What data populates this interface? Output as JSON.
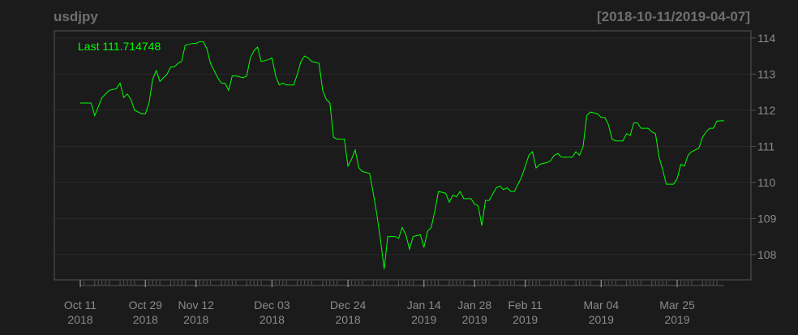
{
  "chart_data": {
    "type": "line",
    "title": "usdjpy",
    "date_range": "[2018-10-11/2019-04-07]",
    "last_label": "Last 111.714748",
    "colors": {
      "background": "#1b1b1b",
      "line": "#00ff00",
      "text": "#8a8a8a",
      "title": "#6f6f6f",
      "grid": "#2a2a2a",
      "frame": "#555555"
    },
    "ylim": [
      107.3,
      114.2
    ],
    "y_ticks": [
      "108",
      "109",
      "110",
      "111",
      "112",
      "113",
      "114"
    ],
    "x_tick_labels": [
      {
        "date": "2018-10-11",
        "label": [
          "Oct 11",
          "2018"
        ]
      },
      {
        "date": "2018-10-29",
        "label": [
          "Oct 29",
          "2018"
        ]
      },
      {
        "date": "2018-11-12",
        "label": [
          "Nov 12",
          "2018"
        ]
      },
      {
        "date": "2018-12-03",
        "label": [
          "Dec 03",
          "2018"
        ]
      },
      {
        "date": "2018-12-24",
        "label": [
          "Dec 24",
          "2018"
        ]
      },
      {
        "date": "2019-01-14",
        "label": [
          "Jan 14",
          "2019"
        ]
      },
      {
        "date": "2019-01-28",
        "label": [
          "Jan 28",
          "2019"
        ]
      },
      {
        "date": "2019-02-11",
        "label": [
          "Feb 11",
          "2019"
        ]
      },
      {
        "date": "2019-03-04",
        "label": [
          "Mar 04",
          "2019"
        ]
      },
      {
        "date": "2019-03-25",
        "label": [
          "Mar 25",
          "2019"
        ]
      }
    ],
    "grid": true,
    "series": [
      {
        "points": [
          [
            "2018-10-11",
            112.2
          ],
          [
            "2018-10-12",
            112.2
          ],
          [
            "2018-10-14",
            112.2
          ],
          [
            "2018-10-15",
            111.85
          ],
          [
            "2018-10-16",
            112.1
          ],
          [
            "2018-10-17",
            112.35
          ],
          [
            "2018-10-18",
            112.45
          ],
          [
            "2018-10-19",
            112.55
          ],
          [
            "2018-10-21",
            112.6
          ],
          [
            "2018-10-22",
            112.75
          ],
          [
            "2018-10-23",
            112.35
          ],
          [
            "2018-10-24",
            112.45
          ],
          [
            "2018-10-25",
            112.3
          ],
          [
            "2018-10-26",
            112.0
          ],
          [
            "2018-10-28",
            111.9
          ],
          [
            "2018-10-29",
            111.9
          ],
          [
            "2018-10-30",
            112.2
          ],
          [
            "2018-10-31",
            112.85
          ],
          [
            "2018-11-01",
            113.1
          ],
          [
            "2018-11-02",
            112.8
          ],
          [
            "2018-11-04",
            113.0
          ],
          [
            "2018-11-05",
            113.2
          ],
          [
            "2018-11-06",
            113.2
          ],
          [
            "2018-11-07",
            113.3
          ],
          [
            "2018-11-08",
            113.35
          ],
          [
            "2018-11-09",
            113.8
          ],
          [
            "2018-11-11",
            113.85
          ],
          [
            "2018-11-12",
            113.85
          ],
          [
            "2018-11-13",
            113.9
          ],
          [
            "2018-11-14",
            113.9
          ],
          [
            "2018-11-15",
            113.7
          ],
          [
            "2018-11-16",
            113.3
          ],
          [
            "2018-11-18",
            112.9
          ],
          [
            "2018-11-19",
            112.75
          ],
          [
            "2018-11-20",
            112.75
          ],
          [
            "2018-11-21",
            112.55
          ],
          [
            "2018-11-22",
            112.95
          ],
          [
            "2018-11-23",
            112.95
          ],
          [
            "2018-11-25",
            112.9
          ],
          [
            "2018-11-26",
            112.95
          ],
          [
            "2018-11-27",
            113.45
          ],
          [
            "2018-11-28",
            113.65
          ],
          [
            "2018-11-29",
            113.75
          ],
          [
            "2018-11-30",
            113.35
          ],
          [
            "2018-12-02",
            113.4
          ],
          [
            "2018-12-03",
            113.45
          ],
          [
            "2018-12-04",
            112.95
          ],
          [
            "2018-12-05",
            112.7
          ],
          [
            "2018-12-06",
            112.75
          ],
          [
            "2018-12-07",
            112.7
          ],
          [
            "2018-12-09",
            112.7
          ],
          [
            "2018-12-10",
            113.0
          ],
          [
            "2018-12-11",
            113.35
          ],
          [
            "2018-12-12",
            113.5
          ],
          [
            "2018-12-13",
            113.45
          ],
          [
            "2018-12-14",
            113.35
          ],
          [
            "2018-12-16",
            113.3
          ],
          [
            "2018-12-17",
            112.55
          ],
          [
            "2018-12-18",
            112.3
          ],
          [
            "2018-12-19",
            112.2
          ],
          [
            "2018-12-20",
            111.25
          ],
          [
            "2018-12-21",
            111.2
          ],
          [
            "2018-12-23",
            111.2
          ],
          [
            "2018-12-24",
            110.45
          ],
          [
            "2018-12-25",
            110.65
          ],
          [
            "2018-12-26",
            110.9
          ],
          [
            "2018-12-27",
            110.4
          ],
          [
            "2018-12-28",
            110.3
          ],
          [
            "2018-12-30",
            110.25
          ],
          [
            "2018-12-31",
            109.7
          ],
          [
            "2019-01-01",
            109.1
          ],
          [
            "2019-01-02",
            108.4
          ],
          [
            "2019-01-03",
            107.6
          ],
          [
            "2019-01-04",
            108.5
          ],
          [
            "2019-01-06",
            108.5
          ],
          [
            "2019-01-07",
            108.45
          ],
          [
            "2019-01-08",
            108.75
          ],
          [
            "2019-01-09",
            108.55
          ],
          [
            "2019-01-10",
            108.15
          ],
          [
            "2019-01-11",
            108.5
          ],
          [
            "2019-01-13",
            108.55
          ],
          [
            "2019-01-14",
            108.2
          ],
          [
            "2019-01-15",
            108.65
          ],
          [
            "2019-01-16",
            108.75
          ],
          [
            "2019-01-17",
            109.2
          ],
          [
            "2019-01-18",
            109.75
          ],
          [
            "2019-01-20",
            109.7
          ],
          [
            "2019-01-21",
            109.45
          ],
          [
            "2019-01-22",
            109.65
          ],
          [
            "2019-01-23",
            109.6
          ],
          [
            "2019-01-24",
            109.75
          ],
          [
            "2019-01-25",
            109.55
          ],
          [
            "2019-01-27",
            109.55
          ],
          [
            "2019-01-28",
            109.4
          ],
          [
            "2019-01-29",
            109.35
          ],
          [
            "2019-01-30",
            108.8
          ],
          [
            "2019-01-31",
            109.5
          ],
          [
            "2019-02-01",
            109.5
          ],
          [
            "2019-02-03",
            109.85
          ],
          [
            "2019-02-04",
            109.9
          ],
          [
            "2019-02-05",
            109.8
          ],
          [
            "2019-02-06",
            109.85
          ],
          [
            "2019-02-07",
            109.75
          ],
          [
            "2019-02-08",
            109.75
          ],
          [
            "2019-02-10",
            110.15
          ],
          [
            "2019-02-11",
            110.45
          ],
          [
            "2019-02-12",
            110.75
          ],
          [
            "2019-02-13",
            110.85
          ],
          [
            "2019-02-14",
            110.4
          ],
          [
            "2019-02-15",
            110.5
          ],
          [
            "2019-02-17",
            110.55
          ],
          [
            "2019-02-18",
            110.6
          ],
          [
            "2019-02-19",
            110.75
          ],
          [
            "2019-02-20",
            110.8
          ],
          [
            "2019-02-21",
            110.7
          ],
          [
            "2019-02-22",
            110.7
          ],
          [
            "2019-02-24",
            110.7
          ],
          [
            "2019-02-25",
            110.85
          ],
          [
            "2019-02-26",
            110.75
          ],
          [
            "2019-02-27",
            111.0
          ],
          [
            "2019-02-28",
            111.85
          ],
          [
            "2019-03-01",
            111.95
          ],
          [
            "2019-03-03",
            111.9
          ],
          [
            "2019-03-04",
            111.8
          ],
          [
            "2019-03-05",
            111.8
          ],
          [
            "2019-03-06",
            111.6
          ],
          [
            "2019-03-07",
            111.2
          ],
          [
            "2019-03-08",
            111.15
          ],
          [
            "2019-03-10",
            111.15
          ],
          [
            "2019-03-11",
            111.35
          ],
          [
            "2019-03-12",
            111.3
          ],
          [
            "2019-03-13",
            111.65
          ],
          [
            "2019-03-14",
            111.65
          ],
          [
            "2019-03-15",
            111.5
          ],
          [
            "2019-03-17",
            111.5
          ],
          [
            "2019-03-18",
            111.4
          ],
          [
            "2019-03-19",
            111.35
          ],
          [
            "2019-03-20",
            110.7
          ],
          [
            "2019-03-21",
            110.35
          ],
          [
            "2019-03-22",
            109.95
          ],
          [
            "2019-03-24",
            109.95
          ],
          [
            "2019-03-25",
            110.1
          ],
          [
            "2019-03-26",
            110.5
          ],
          [
            "2019-03-27",
            110.45
          ],
          [
            "2019-03-28",
            110.75
          ],
          [
            "2019-03-29",
            110.85
          ],
          [
            "2019-03-31",
            110.95
          ],
          [
            "2019-04-01",
            111.25
          ],
          [
            "2019-04-02",
            111.4
          ],
          [
            "2019-04-03",
            111.5
          ],
          [
            "2019-04-04",
            111.5
          ],
          [
            "2019-04-05",
            111.7
          ],
          [
            "2019-04-07",
            111.71
          ]
        ]
      }
    ]
  }
}
